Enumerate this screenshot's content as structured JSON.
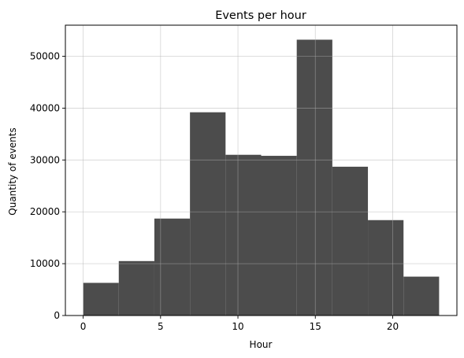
{
  "chart_data": {
    "type": "bar",
    "title": "Events per hour",
    "xlabel": "Hour",
    "ylabel": "Quantity of events",
    "bins": [
      {
        "start": 0.0,
        "end": 2.3,
        "value": 6300
      },
      {
        "start": 2.3,
        "end": 4.6,
        "value": 10500
      },
      {
        "start": 4.6,
        "end": 6.9,
        "value": 18700
      },
      {
        "start": 6.9,
        "end": 9.2,
        "value": 39200
      },
      {
        "start": 9.2,
        "end": 11.5,
        "value": 31000
      },
      {
        "start": 11.5,
        "end": 13.8,
        "value": 30800
      },
      {
        "start": 13.8,
        "end": 16.1,
        "value": 53200
      },
      {
        "start": 16.1,
        "end": 18.4,
        "value": 28700
      },
      {
        "start": 18.4,
        "end": 20.7,
        "value": 18400
      },
      {
        "start": 20.7,
        "end": 23.0,
        "value": 7500
      }
    ],
    "xlim": [
      -1.15,
      24.15
    ],
    "ylim": [
      0,
      56000
    ],
    "xticks": [
      0,
      5,
      10,
      15,
      20
    ],
    "yticks": [
      0,
      10000,
      20000,
      30000,
      40000,
      50000
    ],
    "grid": true,
    "bar_color": "#4c4c4c",
    "grid_color": "#b0b0b0"
  }
}
